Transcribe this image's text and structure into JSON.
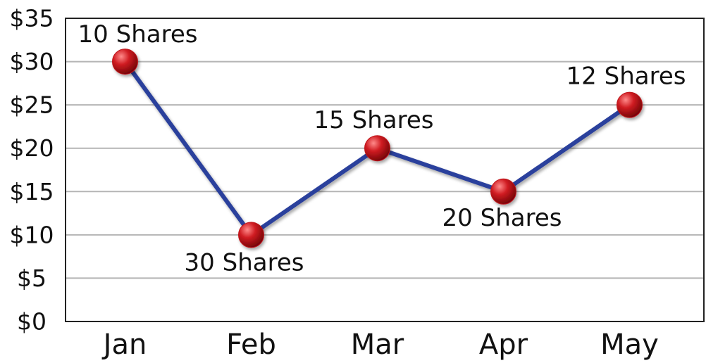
{
  "chart_data": {
    "type": "line",
    "categories": [
      "Jan",
      "Feb",
      "Mar",
      "Apr",
      "May"
    ],
    "series": [
      {
        "color": "#2b3f9c",
        "marker_color": "#c0141a",
        "values": [
          30,
          10,
          20,
          15,
          25
        ]
      }
    ],
    "annotations": [
      "10 Shares",
      "30 Shares",
      "15 Shares",
      "20 Shares",
      "12 Shares"
    ],
    "ylim": [
      0,
      35
    ],
    "yticks": [
      {
        "value": 0,
        "label": "$0"
      },
      {
        "value": 5,
        "label": "$5"
      },
      {
        "value": 10,
        "label": "$10"
      },
      {
        "value": 15,
        "label": "$15"
      },
      {
        "value": 20,
        "label": "$20"
      },
      {
        "value": 25,
        "label": "$25"
      },
      {
        "value": 30,
        "label": "$30"
      },
      {
        "value": 35,
        "label": "$35"
      }
    ],
    "grid": true
  }
}
